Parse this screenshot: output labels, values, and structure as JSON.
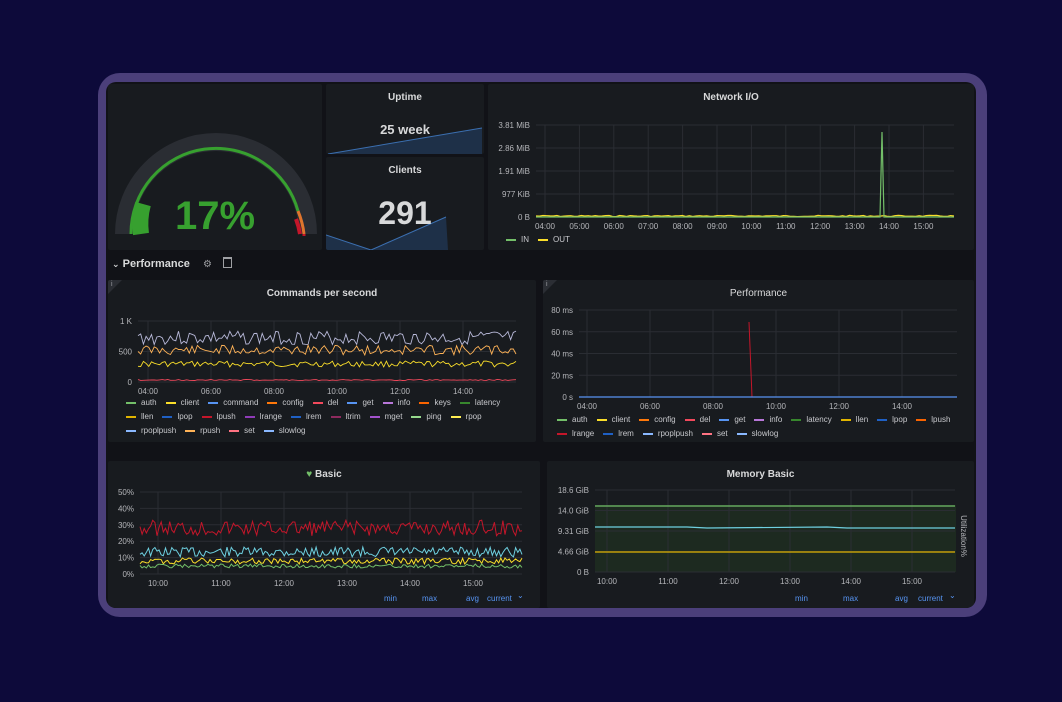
{
  "gauge": {
    "value_label": "17%",
    "value": 17
  },
  "uptime": {
    "title": "Uptime",
    "value": "25 week"
  },
  "clients": {
    "title": "Clients",
    "value": "291"
  },
  "network": {
    "title": "Network I/O",
    "y_ticks": [
      "3.81 MiB",
      "2.86 MiB",
      "1.91 MiB",
      "977 KiB",
      "0 B"
    ],
    "x_ticks": [
      "04:00",
      "05:00",
      "06:00",
      "07:00",
      "08:00",
      "09:00",
      "10:00",
      "11:00",
      "12:00",
      "13:00",
      "14:00",
      "15:00"
    ],
    "legend": [
      {
        "name": "IN",
        "color": "#73bf69"
      },
      {
        "name": "OUT",
        "color": "#fade2a"
      }
    ]
  },
  "row": {
    "chevron": "⌄",
    "title": "Performance",
    "icons": [
      "gear-icon",
      "trash-icon"
    ]
  },
  "cps": {
    "info": "i",
    "title": "Commands per second",
    "y_ticks": [
      "1 K",
      "500",
      "0"
    ],
    "x_ticks": [
      "04:00",
      "06:00",
      "08:00",
      "10:00",
      "12:00",
      "14:00"
    ],
    "legend": [
      {
        "name": "auth",
        "color": "#73bf69"
      },
      {
        "name": "client",
        "color": "#fade2a"
      },
      {
        "name": "command",
        "color": "#5794f2"
      },
      {
        "name": "config",
        "color": "#ff780a"
      },
      {
        "name": "del",
        "color": "#f2495c"
      },
      {
        "name": "get",
        "color": "#5794f2"
      },
      {
        "name": "info",
        "color": "#b877d9"
      },
      {
        "name": "keys",
        "color": "#fa6400"
      },
      {
        "name": "latency",
        "color": "#37872d"
      },
      {
        "name": "llen",
        "color": "#e0b400"
      },
      {
        "name": "lpop",
        "color": "#1f60c4"
      },
      {
        "name": "lpush",
        "color": "#c4162a"
      },
      {
        "name": "lrange",
        "color": "#8f3bb8"
      },
      {
        "name": "lrem",
        "color": "#1f60c4"
      },
      {
        "name": "ltrim",
        "color": "#8e2a5e"
      },
      {
        "name": "mget",
        "color": "#a352cc"
      },
      {
        "name": "ping",
        "color": "#96d98d"
      },
      {
        "name": "rpop",
        "color": "#ffee52"
      },
      {
        "name": "rpoplpush",
        "color": "#8ab8ff"
      },
      {
        "name": "rpush",
        "color": "#ffb357"
      },
      {
        "name": "set",
        "color": "#ff7383"
      },
      {
        "name": "slowlog",
        "color": "#8ab8ff"
      }
    ]
  },
  "perf": {
    "info": "i",
    "title": "Performance",
    "y_ticks": [
      "80 ms",
      "60 ms",
      "40 ms",
      "20 ms",
      "0 s"
    ],
    "x_ticks": [
      "04:00",
      "06:00",
      "08:00",
      "10:00",
      "12:00",
      "14:00"
    ],
    "legend": [
      {
        "name": "auth",
        "color": "#73bf69"
      },
      {
        "name": "client",
        "color": "#fade2a"
      },
      {
        "name": "config",
        "color": "#ff780a"
      },
      {
        "name": "del",
        "color": "#f2495c"
      },
      {
        "name": "get",
        "color": "#5794f2"
      },
      {
        "name": "info",
        "color": "#b877d9"
      },
      {
        "name": "latency",
        "color": "#37872d"
      },
      {
        "name": "llen",
        "color": "#e0b400"
      },
      {
        "name": "lpop",
        "color": "#1f60c4"
      },
      {
        "name": "lpush",
        "color": "#fa6400"
      },
      {
        "name": "lrange",
        "color": "#c4162a"
      },
      {
        "name": "lrem",
        "color": "#1f60c4"
      },
      {
        "name": "rpoplpush",
        "color": "#8ab8ff"
      },
      {
        "name": "set",
        "color": "#ff7383"
      },
      {
        "name": "slowlog",
        "color": "#8ab8ff"
      }
    ]
  },
  "basic": {
    "title": "Basic",
    "y_ticks": [
      "50%",
      "40%",
      "30%",
      "20%",
      "10%",
      "0%"
    ],
    "x_ticks": [
      "10:00",
      "11:00",
      "12:00",
      "13:00",
      "14:00",
      "15:00"
    ],
    "columns": [
      "min",
      "max",
      "avg",
      "current"
    ],
    "sort_icon": "⌄"
  },
  "memory": {
    "title": "Memory Basic",
    "y_ticks": [
      "18.6 GiB",
      "14.0 GiB",
      "9.31 GiB",
      "4.66 GiB",
      "0 B"
    ],
    "x_ticks": [
      "10:00",
      "11:00",
      "12:00",
      "13:00",
      "14:00",
      "15:00"
    ],
    "right_label": "Utilization%",
    "columns": [
      "min",
      "max",
      "avg",
      "current"
    ],
    "sort_icon": "⌄"
  },
  "colors": {
    "background": "#0d0a3a",
    "frame": "#4b3f7a",
    "panel": "#181b1f",
    "green": "#73bf69",
    "yellow": "#fade2a",
    "red": "#c4162a",
    "cyan": "#6ed0e0",
    "link": "#5794f2"
  }
}
